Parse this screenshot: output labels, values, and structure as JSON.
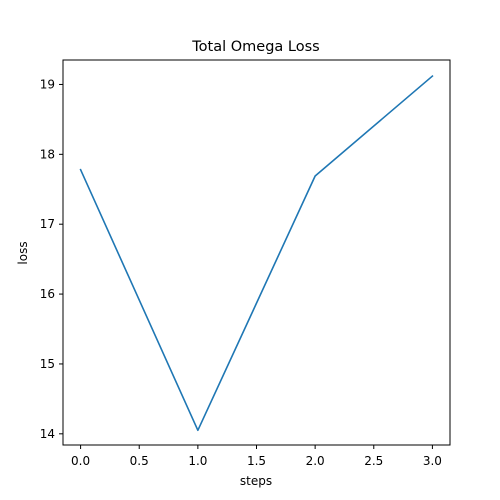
{
  "chart_data": {
    "type": "line",
    "title": "Total Omega Loss",
    "xlabel": "steps",
    "ylabel": "loss",
    "xlim": [
      -0.15,
      3.15
    ],
    "ylim": [
      13.84,
      19.35
    ],
    "grid": false,
    "x_ticks": [
      0.0,
      0.5,
      1.0,
      1.5,
      2.0,
      2.5,
      3.0
    ],
    "x_tick_labels": [
      "0.0",
      "0.5",
      "1.0",
      "1.5",
      "2.0",
      "2.5",
      "3.0"
    ],
    "y_ticks": [
      14,
      15,
      16,
      17,
      18,
      19
    ],
    "y_tick_labels": [
      "14",
      "15",
      "16",
      "17",
      "18",
      "19"
    ],
    "series": [
      {
        "x": [
          0,
          1,
          2,
          3
        ],
        "values": [
          17.78,
          14.05,
          17.69,
          19.12
        ],
        "color": "#1f77b4"
      }
    ]
  }
}
